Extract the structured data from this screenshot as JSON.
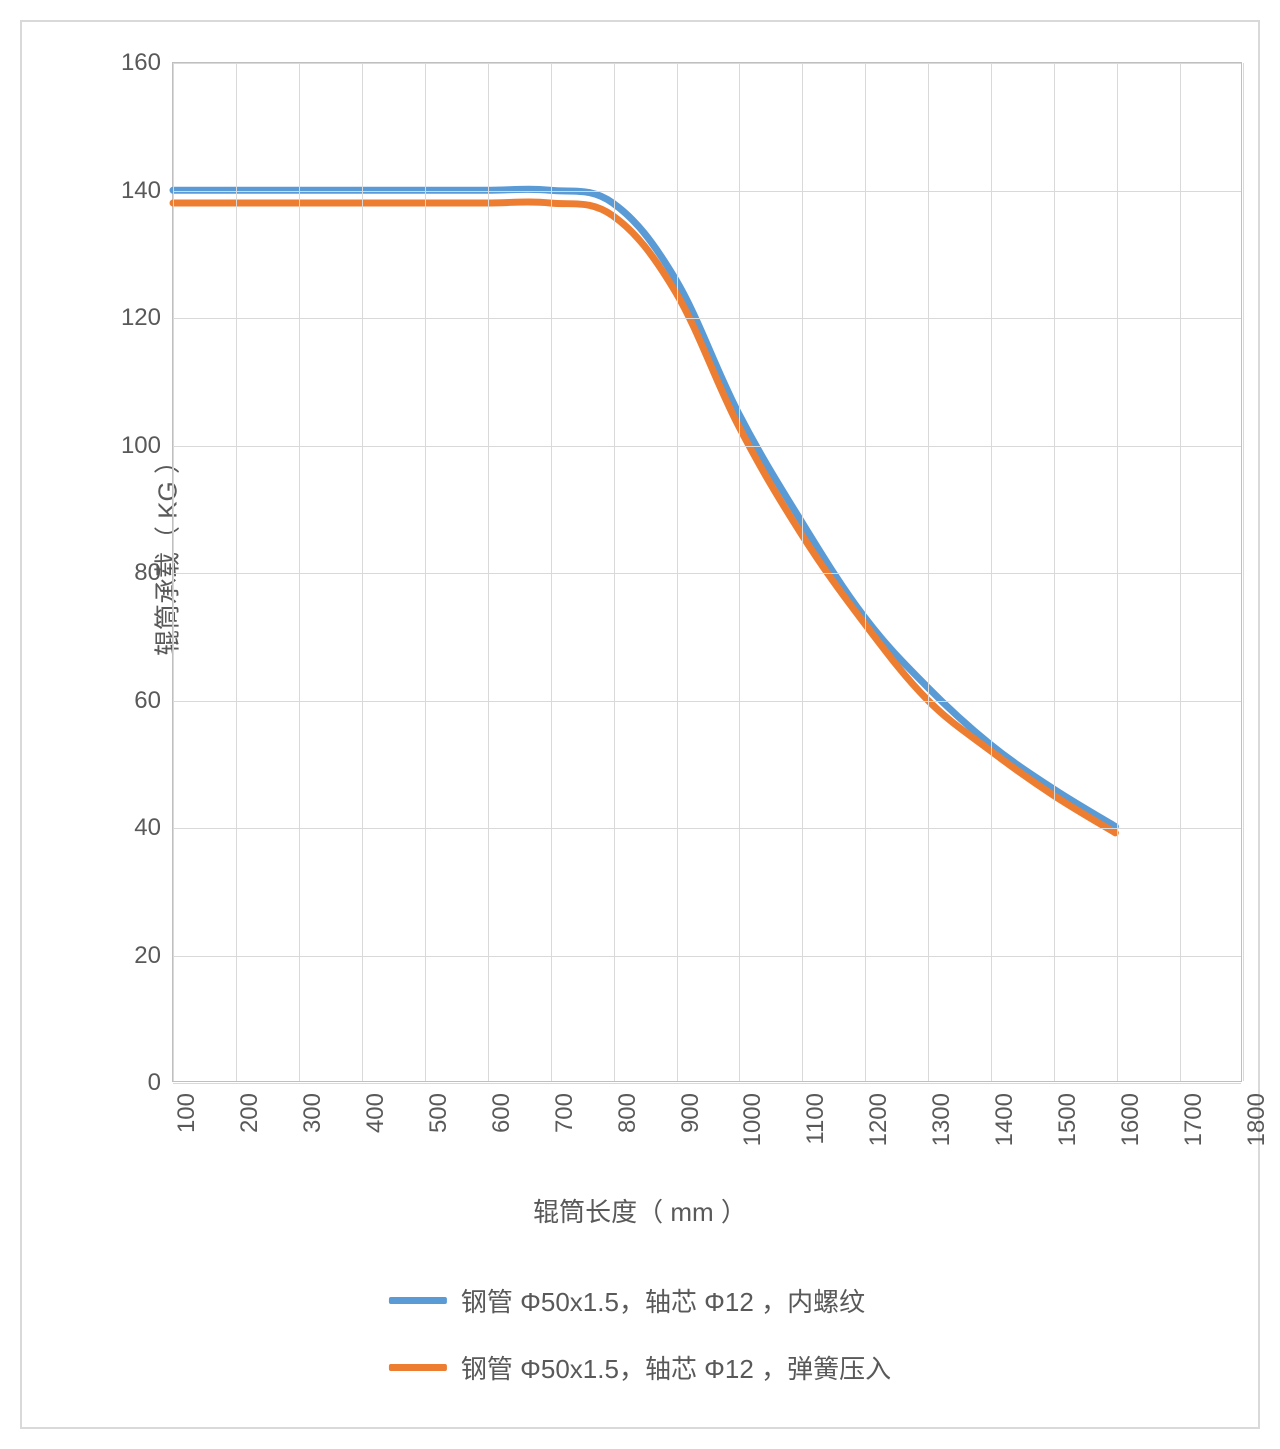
{
  "chart": {
    "type": "line",
    "background_color": "#ffffff",
    "outer_border_color": "#d9d9d9",
    "plot_border_color": "#bfbfbf",
    "grid_color": "#d9d9d9",
    "text_color": "#595959",
    "tick_fontsize": 24,
    "axis_title_fontsize": 26,
    "legend_fontsize": 26,
    "line_width": 7,
    "x_axis": {
      "title": "辊筒长度（ mm ）",
      "min": 100,
      "max": 1800,
      "ticks": [
        100,
        200,
        300,
        400,
        500,
        600,
        700,
        800,
        900,
        1000,
        1100,
        1200,
        1300,
        1400,
        1500,
        1600,
        1700,
        1800
      ]
    },
    "y_axis": {
      "title": "辊筒承载（ KG ）",
      "min": 0,
      "max": 160,
      "ticks": [
        0,
        20,
        40,
        60,
        80,
        100,
        120,
        140,
        160
      ]
    },
    "series": [
      {
        "name": "钢管 Φ50x1.5，轴芯 Φ12 ，内螺纹",
        "color": "#5b9bd5",
        "x": [
          100,
          200,
          300,
          400,
          500,
          600,
          700,
          800,
          900,
          1000,
          1100,
          1200,
          1300,
          1400,
          1500,
          1600
        ],
        "y": [
          140,
          140,
          140,
          140,
          140,
          140,
          140,
          138,
          126,
          105,
          88,
          73,
          62,
          53,
          46,
          40
        ]
      },
      {
        "name": "钢管 Φ50x1.5，轴芯 Φ12 ，弹簧压入",
        "color": "#ed7d31",
        "x": [
          100,
          200,
          300,
          400,
          500,
          600,
          700,
          800,
          900,
          1000,
          1100,
          1200,
          1300,
          1400,
          1500,
          1600
        ],
        "y": [
          138,
          138,
          138,
          138,
          138,
          138,
          138,
          136,
          124,
          103,
          86,
          72,
          60,
          52,
          45,
          39
        ]
      }
    ]
  }
}
